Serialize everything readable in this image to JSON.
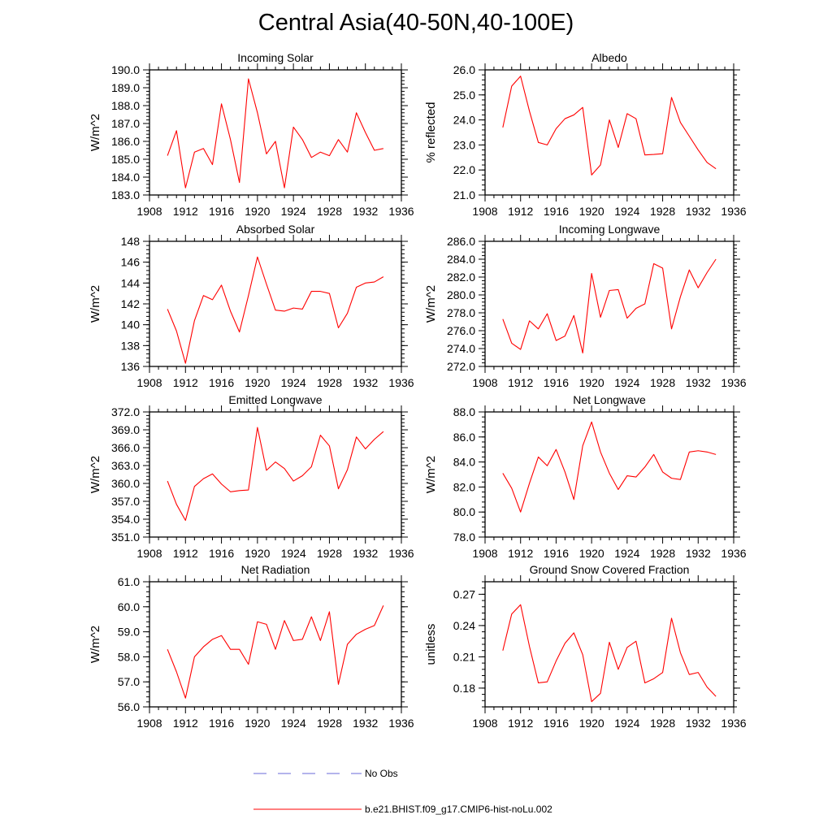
{
  "title": "Central Asia(40-50N,40-100E)",
  "legend": {
    "items": [
      {
        "label": "No Obs",
        "style": "dashed",
        "color": "#6a6ad8"
      },
      {
        "label": "b.e21.BHIST.f09_g17.CMIP6-hist-noLu.002",
        "style": "solid",
        "color": "#ff0000"
      }
    ]
  },
  "chart_data": [
    {
      "type": "line",
      "title": "Incoming Solar",
      "ylabel": "W/m^2",
      "xlim": [
        1908,
        1936
      ],
      "ylim": [
        183.0,
        190.0
      ],
      "xticks": [
        "1908",
        "1912",
        "1916",
        "1920",
        "1924",
        "1928",
        "1932",
        "1936"
      ],
      "yticks": [
        "183.0",
        "184.0",
        "185.0",
        "186.0",
        "187.0",
        "188.0",
        "189.0",
        "190.0"
      ],
      "x": [
        1910,
        1911,
        1912,
        1913,
        1914,
        1915,
        1916,
        1917,
        1918,
        1919,
        1920,
        1921,
        1922,
        1923,
        1924,
        1925,
        1926,
        1927,
        1928,
        1929,
        1930,
        1931,
        1932,
        1933,
        1934
      ],
      "series": [
        {
          "name": "b.e21.BHIST.f09_g17.CMIP6-hist-noLu.002",
          "color": "#ff0000",
          "values": [
            185.2,
            186.6,
            183.4,
            185.4,
            185.6,
            184.7,
            188.1,
            186.1,
            183.7,
            189.5,
            187.6,
            185.3,
            186.0,
            183.4,
            186.8,
            186.1,
            185.1,
            185.4,
            185.2,
            186.1,
            185.4,
            187.6,
            186.5,
            185.5,
            185.6
          ]
        }
      ]
    },
    {
      "type": "line",
      "title": "Albedo",
      "ylabel": "% reflected",
      "xlim": [
        1908,
        1936
      ],
      "ylim": [
        21.0,
        26.0
      ],
      "xticks": [
        "1908",
        "1912",
        "1916",
        "1920",
        "1924",
        "1928",
        "1932",
        "1936"
      ],
      "yticks": [
        "21.0",
        "22.0",
        "23.0",
        "24.0",
        "25.0",
        "26.0"
      ],
      "x": [
        1910,
        1911,
        1912,
        1913,
        1914,
        1915,
        1916,
        1917,
        1918,
        1919,
        1920,
        1921,
        1922,
        1923,
        1924,
        1925,
        1926,
        1927,
        1928,
        1929,
        1930,
        1931,
        1932,
        1933,
        1934
      ],
      "series": [
        {
          "name": "b.e21.BHIST.f09_g17.CMIP6-hist-noLu.002",
          "color": "#ff0000",
          "values": [
            23.7,
            25.35,
            25.75,
            24.35,
            23.1,
            23.0,
            23.65,
            24.05,
            24.2,
            24.5,
            21.8,
            22.2,
            24.0,
            22.9,
            24.25,
            24.05,
            22.6,
            22.62,
            22.65,
            24.9,
            23.9,
            23.35,
            22.8,
            22.3,
            22.05
          ]
        }
      ]
    },
    {
      "type": "line",
      "title": "Absorbed Solar",
      "ylabel": "W/m^2",
      "xlim": [
        1908,
        1936
      ],
      "ylim": [
        136,
        148
      ],
      "xticks": [
        "1908",
        "1912",
        "1916",
        "1920",
        "1924",
        "1928",
        "1932",
        "1936"
      ],
      "yticks": [
        "136",
        "138",
        "140",
        "142",
        "144",
        "146",
        "148"
      ],
      "x": [
        1910,
        1911,
        1912,
        1913,
        1914,
        1915,
        1916,
        1917,
        1918,
        1919,
        1920,
        1921,
        1922,
        1923,
        1924,
        1925,
        1926,
        1927,
        1928,
        1929,
        1930,
        1931,
        1932,
        1933,
        1934
      ],
      "series": [
        {
          "name": "b.e21.BHIST.f09_g17.CMIP6-hist-noLu.002",
          "color": "#ff0000",
          "values": [
            141.5,
            139.4,
            136.3,
            140.4,
            142.8,
            142.4,
            143.8,
            141.3,
            139.3,
            142.8,
            146.5,
            143.9,
            141.4,
            141.3,
            141.6,
            141.5,
            143.2,
            143.2,
            143.0,
            139.7,
            141.1,
            143.6,
            144.0,
            144.1,
            144.6
          ]
        }
      ]
    },
    {
      "type": "line",
      "title": "Incoming Longwave",
      "ylabel": "W/m^2",
      "xlim": [
        1908,
        1936
      ],
      "ylim": [
        272.0,
        286.0
      ],
      "xticks": [
        "1908",
        "1912",
        "1916",
        "1920",
        "1924",
        "1928",
        "1932",
        "1936"
      ],
      "yticks": [
        "272.0",
        "274.0",
        "276.0",
        "278.0",
        "280.0",
        "282.0",
        "284.0",
        "286.0"
      ],
      "x": [
        1910,
        1911,
        1912,
        1913,
        1914,
        1915,
        1916,
        1917,
        1918,
        1919,
        1920,
        1921,
        1922,
        1923,
        1924,
        1925,
        1926,
        1927,
        1928,
        1929,
        1930,
        1931,
        1932,
        1933,
        1934
      ],
      "series": [
        {
          "name": "b.e21.BHIST.f09_g17.CMIP6-hist-noLu.002",
          "color": "#ff0000",
          "values": [
            277.3,
            274.6,
            273.9,
            277.1,
            276.2,
            277.9,
            274.9,
            275.4,
            277.7,
            273.5,
            282.4,
            277.5,
            280.5,
            280.6,
            277.4,
            278.5,
            279.0,
            283.5,
            283.0,
            276.2,
            279.8,
            282.8,
            280.8,
            282.5,
            284.0
          ]
        }
      ]
    },
    {
      "type": "line",
      "title": "Emitted Longwave",
      "ylabel": "W/m^2",
      "xlim": [
        1908,
        1936
      ],
      "ylim": [
        351.0,
        372.0
      ],
      "xticks": [
        "1908",
        "1912",
        "1916",
        "1920",
        "1924",
        "1928",
        "1932",
        "1936"
      ],
      "yticks": [
        "351.0",
        "354.0",
        "357.0",
        "360.0",
        "363.0",
        "366.0",
        "369.0",
        "372.0"
      ],
      "x": [
        1910,
        1911,
        1912,
        1913,
        1914,
        1915,
        1916,
        1917,
        1918,
        1919,
        1920,
        1921,
        1922,
        1923,
        1924,
        1925,
        1926,
        1927,
        1928,
        1929,
        1930,
        1931,
        1932,
        1933,
        1934
      ],
      "series": [
        {
          "name": "b.e21.BHIST.f09_g17.CMIP6-hist-noLu.002",
          "color": "#ff0000",
          "values": [
            360.4,
            356.5,
            353.8,
            359.5,
            360.8,
            361.6,
            359.9,
            358.6,
            358.8,
            358.9,
            369.4,
            362.2,
            363.6,
            362.5,
            360.4,
            361.3,
            362.8,
            368.1,
            366.3,
            359.1,
            362.3,
            367.8,
            365.8,
            367.4,
            368.7
          ]
        }
      ]
    },
    {
      "type": "line",
      "title": "Net Longwave",
      "ylabel": "W/m^2",
      "xlim": [
        1908,
        1936
      ],
      "ylim": [
        78.0,
        88.0
      ],
      "xticks": [
        "1908",
        "1912",
        "1916",
        "1920",
        "1924",
        "1928",
        "1932",
        "1936"
      ],
      "yticks": [
        "78.0",
        "80.0",
        "82.0",
        "84.0",
        "86.0",
        "88.0"
      ],
      "x": [
        1910,
        1911,
        1912,
        1913,
        1914,
        1915,
        1916,
        1917,
        1918,
        1919,
        1920,
        1921,
        1922,
        1923,
        1924,
        1925,
        1926,
        1927,
        1928,
        1929,
        1930,
        1931,
        1932,
        1933,
        1934
      ],
      "series": [
        {
          "name": "b.e21.BHIST.f09_g17.CMIP6-hist-noLu.002",
          "color": "#ff0000",
          "values": [
            83.1,
            81.9,
            80.0,
            82.3,
            84.4,
            83.7,
            85.0,
            83.2,
            81.0,
            85.3,
            87.2,
            84.8,
            83.1,
            81.8,
            82.9,
            82.8,
            83.6,
            84.6,
            83.2,
            82.7,
            82.6,
            84.8,
            84.9,
            84.8,
            84.6
          ]
        }
      ]
    },
    {
      "type": "line",
      "title": "Net Radiation",
      "ylabel": "W/m^2",
      "xlim": [
        1908,
        1936
      ],
      "ylim": [
        56.0,
        61.0
      ],
      "xticks": [
        "1908",
        "1912",
        "1916",
        "1920",
        "1924",
        "1928",
        "1932",
        "1936"
      ],
      "yticks": [
        "56.0",
        "57.0",
        "58.0",
        "59.0",
        "60.0",
        "61.0"
      ],
      "x": [
        1910,
        1911,
        1912,
        1913,
        1914,
        1915,
        1916,
        1917,
        1918,
        1919,
        1920,
        1921,
        1922,
        1923,
        1924,
        1925,
        1926,
        1927,
        1928,
        1929,
        1930,
        1931,
        1932,
        1933,
        1934
      ],
      "series": [
        {
          "name": "b.e21.BHIST.f09_g17.CMIP6-hist-noLu.002",
          "color": "#ff0000",
          "values": [
            58.3,
            57.4,
            56.35,
            58.0,
            58.4,
            58.7,
            58.85,
            58.3,
            58.3,
            57.7,
            59.4,
            59.3,
            58.3,
            59.45,
            58.65,
            58.7,
            59.6,
            58.65,
            59.8,
            56.9,
            58.5,
            58.9,
            59.1,
            59.25,
            60.05
          ]
        }
      ]
    },
    {
      "type": "line",
      "title": "Ground Snow Covered Fraction",
      "ylabel": "unitless",
      "xlim": [
        1908,
        1936
      ],
      "ylim": [
        0.162,
        0.282
      ],
      "xticks": [
        "1908",
        "1912",
        "1916",
        "1920",
        "1924",
        "1928",
        "1932",
        "1936"
      ],
      "yticks": [
        "0.18",
        "0.21",
        "0.24",
        "0.27"
      ],
      "x": [
        1910,
        1911,
        1912,
        1913,
        1914,
        1915,
        1916,
        1917,
        1918,
        1919,
        1920,
        1921,
        1922,
        1923,
        1924,
        1925,
        1926,
        1927,
        1928,
        1929,
        1930,
        1931,
        1932,
        1933,
        1934
      ],
      "series": [
        {
          "name": "b.e21.BHIST.f09_g17.CMIP6-hist-noLu.002",
          "color": "#ff0000",
          "values": [
            0.216,
            0.251,
            0.26,
            0.22,
            0.185,
            0.186,
            0.206,
            0.223,
            0.233,
            0.212,
            0.167,
            0.175,
            0.224,
            0.198,
            0.219,
            0.225,
            0.185,
            0.189,
            0.195,
            0.247,
            0.214,
            0.193,
            0.195,
            0.181,
            0.172
          ]
        }
      ]
    }
  ]
}
